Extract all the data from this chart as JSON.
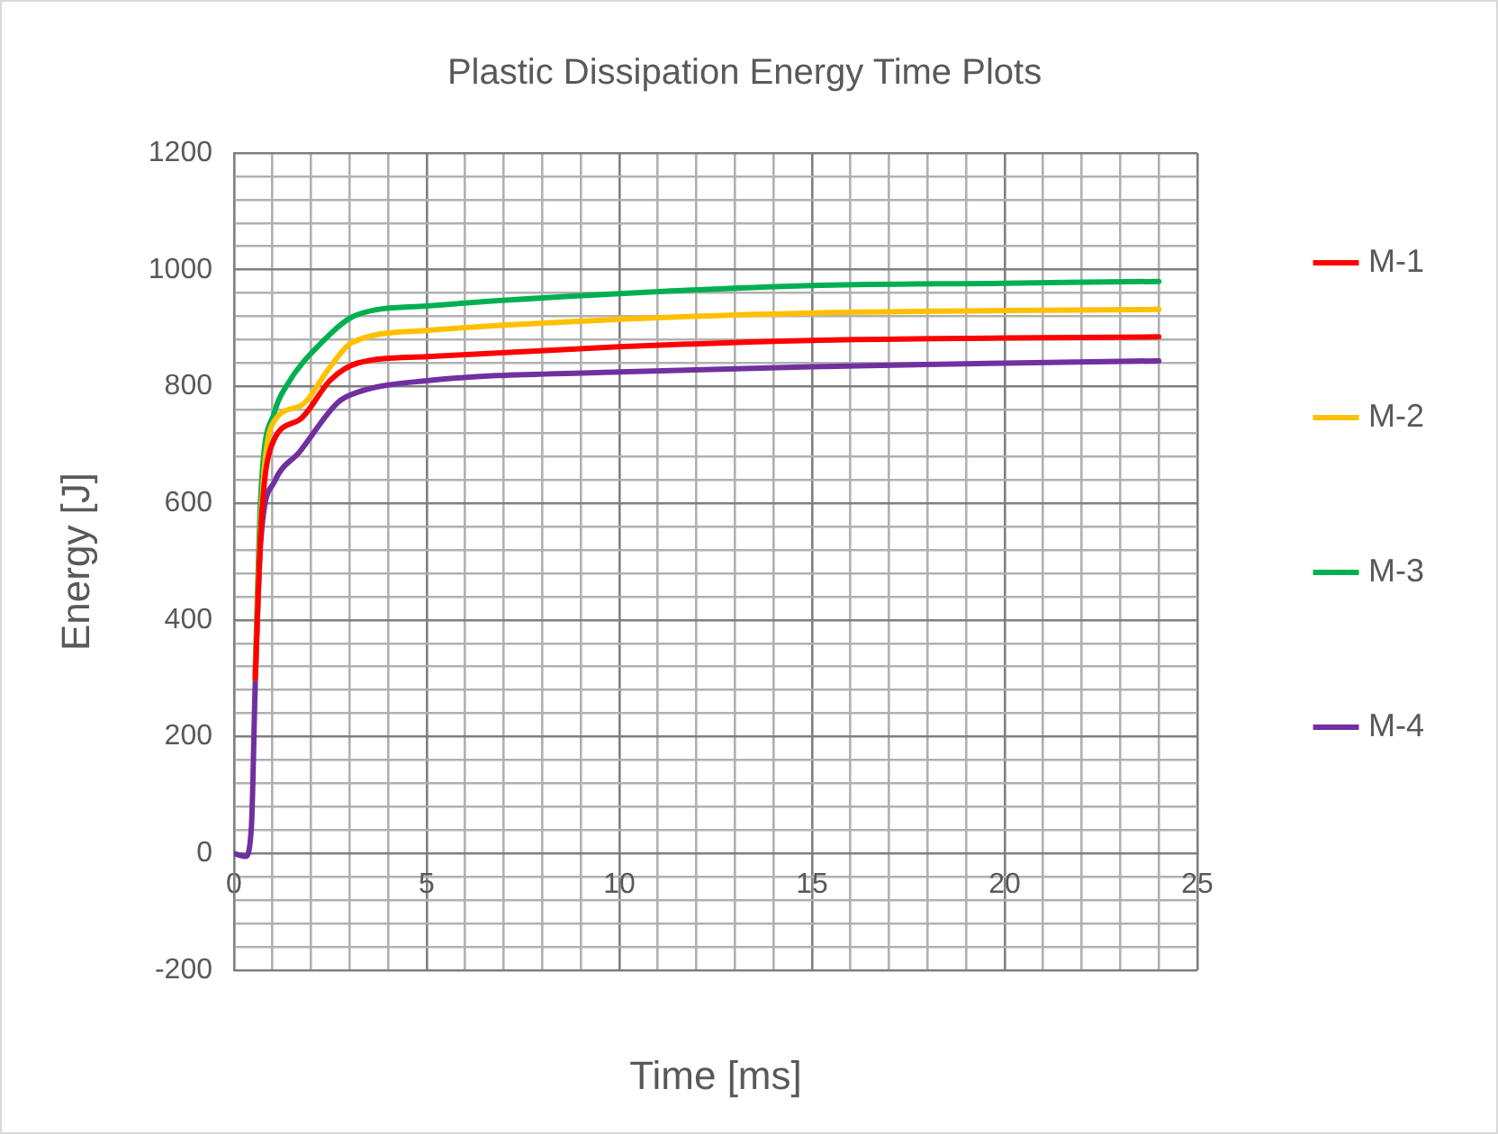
{
  "chart_data": {
    "type": "line",
    "title": "Plastic Dissipation Energy Time Plots",
    "xlabel": "Time [ms]",
    "ylabel": "Energy [J]",
    "xlim": [
      0,
      25
    ],
    "ylim": [
      -200,
      1200
    ],
    "xticks": [
      0,
      {
        "value": 1,
        "label": null
      },
      {
        "value": 2,
        "label": null
      },
      {
        "value": 3,
        "label": null
      },
      {
        "value": 4,
        "label": null
      },
      5,
      {
        "value": 6,
        "label": null
      },
      {
        "value": 7,
        "label": null
      },
      {
        "value": 8,
        "label": null
      },
      {
        "value": 9,
        "label": null
      },
      10,
      {
        "value": 11,
        "label": null
      },
      {
        "value": 12,
        "label": null
      },
      {
        "value": 13,
        "label": null
      },
      {
        "value": 14,
        "label": null
      },
      15,
      {
        "value": 16,
        "label": null
      },
      {
        "value": 17,
        "label": null
      },
      {
        "value": 18,
        "label": null
      },
      {
        "value": 19,
        "label": null
      },
      20,
      {
        "value": 21,
        "label": null
      },
      {
        "value": 22,
        "label": null
      },
      {
        "value": 23,
        "label": null
      },
      {
        "value": 24,
        "label": null
      },
      25
    ],
    "yticks": [
      -200,
      {
        "value": -160,
        "label": null
      },
      {
        "value": -120,
        "label": null
      },
      {
        "value": -80,
        "label": null
      },
      {
        "value": -40,
        "label": null
      },
      0,
      {
        "value": 40,
        "label": null
      },
      {
        "value": 80,
        "label": null
      },
      {
        "value": 120,
        "label": null
      },
      {
        "value": 160,
        "label": null
      },
      200,
      {
        "value": 240,
        "label": null
      },
      {
        "value": 280,
        "label": null
      },
      {
        "value": 320,
        "label": null
      },
      {
        "value": 360,
        "label": null
      },
      400,
      {
        "value": 440,
        "label": null
      },
      {
        "value": 480,
        "label": null
      },
      {
        "value": 520,
        "label": null
      },
      {
        "value": 560,
        "label": null
      },
      600,
      {
        "value": 640,
        "label": null
      },
      {
        "value": 680,
        "label": null
      },
      {
        "value": 720,
        "label": null
      },
      {
        "value": 760,
        "label": null
      },
      800,
      {
        "value": 840,
        "label": null
      },
      {
        "value": 880,
        "label": null
      },
      {
        "value": 920,
        "label": null
      },
      {
        "value": 960,
        "label": null
      },
      1000,
      {
        "value": 1040,
        "label": null
      },
      {
        "value": 1080,
        "label": null
      },
      {
        "value": 1120,
        "label": null
      },
      {
        "value": 1160,
        "label": null
      },
      1200
    ],
    "grid": true,
    "legend": "right",
    "marker": "none",
    "line_style": "solid",
    "series": [
      {
        "name": "M-1",
        "color": "#ff0000",
        "x": [
          0.55,
          0.7,
          0.97,
          1.7,
          2.5,
          3.2,
          5,
          10,
          15,
          20,
          24
        ],
        "values": [
          300,
          560,
          698,
          743,
          811,
          840,
          851,
          868,
          879,
          883,
          885
        ]
      },
      {
        "name": "M-2",
        "color": "#ffc000",
        "x": [
          0.55,
          0.7,
          0.97,
          1.7,
          2.5,
          3.05,
          5,
          10,
          15,
          20,
          24
        ],
        "values": [
          300,
          580,
          732,
          766,
          834,
          875,
          896,
          915,
          926,
          930,
          932
        ]
      },
      {
        "name": "M-3",
        "color": "#00b050",
        "x": [
          0.55,
          0.7,
          1.05,
          1.35,
          2.33,
          3.16,
          5,
          10,
          15,
          20,
          24
        ],
        "values": [
          310,
          620,
          756,
          800,
          879,
          922,
          938,
          959,
          973,
          977,
          980
        ]
      },
      {
        "name": "M-4",
        "color": "#7030a0",
        "x": [
          0,
          0.3,
          0.45,
          0.55,
          0.7,
          1.05,
          1.7,
          2.7,
          3.2,
          5,
          10,
          15,
          20,
          24
        ],
        "values": [
          0,
          -5,
          45,
          290,
          540,
          637,
          688,
          773,
          790,
          810,
          825,
          834,
          840,
          844
        ]
      }
    ]
  }
}
